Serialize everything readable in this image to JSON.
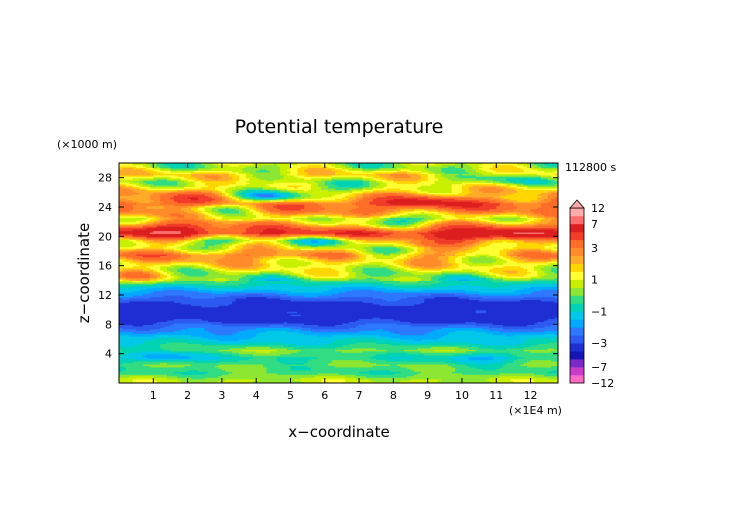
{
  "chart_data": {
    "type": "heatmap",
    "title": "Potential temperature",
    "xlabel": "x−coordinate",
    "ylabel": "z−coordinate",
    "x_unit": "(×1E4 m)",
    "y_unit": "(×1000 m)",
    "time_label": "112800 s",
    "xlim": [
      0,
      12.8
    ],
    "ylim": [
      0,
      30
    ],
    "x_ticks": [
      {
        "value": 1,
        "label": "1"
      },
      {
        "value": 2,
        "label": "2"
      },
      {
        "value": 3,
        "label": "3"
      },
      {
        "value": 4,
        "label": "4"
      },
      {
        "value": 5,
        "label": "5"
      },
      {
        "value": 6,
        "label": "6"
      },
      {
        "value": 7,
        "label": "7"
      },
      {
        "value": 8,
        "label": "8"
      },
      {
        "value": 9,
        "label": "9"
      },
      {
        "value": 10,
        "label": "10"
      },
      {
        "value": 11,
        "label": "11"
      },
      {
        "value": 12,
        "label": "12"
      }
    ],
    "y_ticks": [
      {
        "value": 4,
        "label": "4"
      },
      {
        "value": 8,
        "label": "8"
      },
      {
        "value": 12,
        "label": "12"
      },
      {
        "value": 16,
        "label": "16"
      },
      {
        "value": 20,
        "label": "20"
      },
      {
        "value": 24,
        "label": "24"
      },
      {
        "value": 28,
        "label": "28"
      }
    ],
    "z_profile": [
      {
        "z": 0.5,
        "v": 0.6
      },
      {
        "z": 1.5,
        "v": -0.3
      },
      {
        "z": 2.5,
        "v": 0.0
      },
      {
        "z": 3.5,
        "v": -0.6
      },
      {
        "z": 4.5,
        "v": 0.2
      },
      {
        "z": 5.5,
        "v": -0.9
      },
      {
        "z": 6.5,
        "v": -1.5
      },
      {
        "z": 7.5,
        "v": -2.2
      },
      {
        "z": 8.5,
        "v": -3.2
      },
      {
        "z": 9.5,
        "v": -3.5
      },
      {
        "z": 10.5,
        "v": -3.4
      },
      {
        "z": 11.5,
        "v": -2.8
      },
      {
        "z": 12.5,
        "v": -1.8
      },
      {
        "z": 13.5,
        "v": -0.8
      },
      {
        "z": 14.5,
        "v": 0.2
      },
      {
        "z": 15.5,
        "v": 1.0
      },
      {
        "z": 16.5,
        "v": 1.8
      },
      {
        "z": 17.5,
        "v": 3.0
      },
      {
        "z": 18.5,
        "v": 1.6
      },
      {
        "z": 19.5,
        "v": 2.0
      },
      {
        "z": 20.5,
        "v": 5.0
      },
      {
        "z": 21.5,
        "v": 3.0
      },
      {
        "z": 22.5,
        "v": 1.4
      },
      {
        "z": 23.5,
        "v": 2.8
      },
      {
        "z": 24.5,
        "v": 4.0
      },
      {
        "z": 25.5,
        "v": 2.2
      },
      {
        "z": 26.5,
        "v": 1.5
      },
      {
        "z": 27.5,
        "v": 0.8
      },
      {
        "z": 28.5,
        "v": 1.6
      },
      {
        "z": 29.5,
        "v": 0.5
      }
    ],
    "features": [
      {
        "x": 4.5,
        "z": 25.5,
        "v": -3.5
      },
      {
        "x": 3.0,
        "z": 24.0,
        "v": -2.5
      },
      {
        "x": 8.0,
        "z": 22.0,
        "v": -3.0
      },
      {
        "x": 3.0,
        "z": 19.5,
        "v": -2.5
      },
      {
        "x": 10.0,
        "z": 19.8,
        "v": 2.5
      },
      {
        "x": 1.5,
        "z": 21.0,
        "v": 2.5
      },
      {
        "x": 6.0,
        "z": 19.5,
        "v": -2.5
      },
      {
        "x": 9.0,
        "z": 25.0,
        "v": 2.0
      },
      {
        "x": 11.5,
        "z": 20.5,
        "v": 1.5
      },
      {
        "x": 2.0,
        "z": 25.5,
        "v": 1.5
      },
      {
        "x": 7.5,
        "z": 17.5,
        "v": -2.0
      },
      {
        "x": 11.0,
        "z": 17.5,
        "v": -1.5
      },
      {
        "x": 0.5,
        "z": 14.5,
        "v": 2.0
      },
      {
        "x": 1.2,
        "z": 3.8,
        "v": -1.5
      },
      {
        "x": 10.5,
        "z": 3.5,
        "v": -1.0
      },
      {
        "x": 6.0,
        "z": 26.5,
        "v": -1.5
      },
      {
        "x": 11.2,
        "z": 28.0,
        "v": -1.5
      }
    ],
    "colorbar": {
      "levels": [
        -12,
        -9,
        -7,
        -5,
        -4,
        -3,
        -2.5,
        -2,
        -1.5,
        -1,
        -0.5,
        0,
        0.5,
        1,
        1.5,
        2,
        2.5,
        3,
        4,
        5,
        7,
        9,
        12
      ],
      "colors": [
        "#ff69c8",
        "#c93cc9",
        "#7a28c8",
        "#1414b4",
        "#1e2ed2",
        "#2d5af0",
        "#2d78ff",
        "#00aaff",
        "#00c8e6",
        "#00d2b4",
        "#32dc82",
        "#8ce632",
        "#c8f000",
        "#ffff32",
        "#ffd700",
        "#ffaa28",
        "#ff8c28",
        "#ff6e28",
        "#f03c28",
        "#dc1e1e",
        "#ff6e6e",
        "#ffaaaa"
      ],
      "labels": [
        {
          "value": 12,
          "label": "12"
        },
        {
          "value": 7,
          "label": "7"
        },
        {
          "value": 3,
          "label": "3"
        },
        {
          "value": 1,
          "label": "1"
        },
        {
          "value": -1,
          "label": "−1"
        },
        {
          "value": -3,
          "label": "−3"
        },
        {
          "value": -7,
          "label": "−7"
        },
        {
          "value": -12,
          "label": "−12"
        }
      ]
    }
  }
}
